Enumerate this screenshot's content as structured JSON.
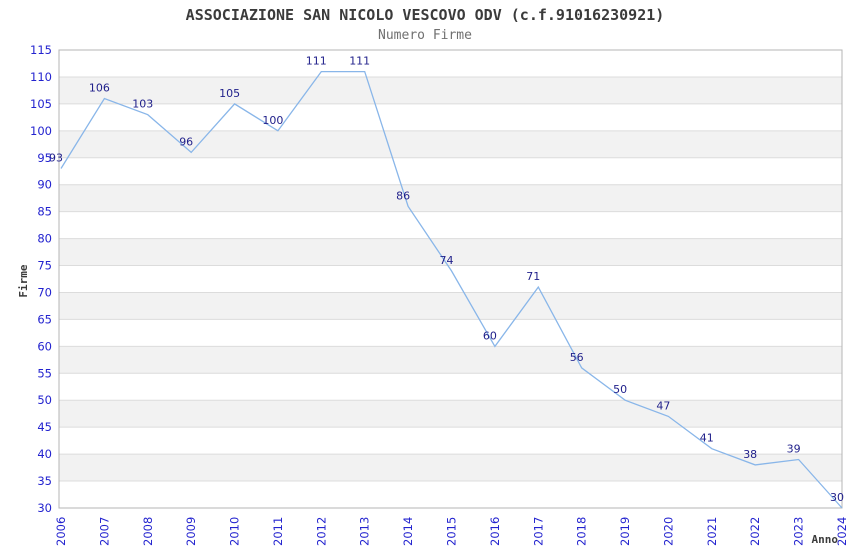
{
  "chart_data": {
    "type": "line",
    "title": "ASSOCIAZIONE SAN NICOLO VESCOVO ODV (c.f.91016230921)",
    "subtitle": "Numero Firme",
    "xlabel": "Anno",
    "ylabel": "Firme",
    "categories": [
      "2006",
      "2007",
      "2008",
      "2009",
      "2010",
      "2011",
      "2012",
      "2013",
      "2014",
      "2015",
      "2016",
      "2017",
      "2018",
      "2019",
      "2020",
      "2021",
      "2022",
      "2023",
      "2024"
    ],
    "values": [
      93,
      106,
      103,
      96,
      105,
      100,
      111,
      111,
      86,
      74,
      60,
      71,
      56,
      50,
      47,
      41,
      38,
      39,
      30
    ],
    "ylim": [
      30,
      115
    ],
    "ytick_step": 5,
    "ytick_labels": [
      "30",
      "35",
      "40",
      "45",
      "50",
      "55",
      "60",
      "65",
      "70",
      "75",
      "80",
      "85",
      "90",
      "95",
      "100",
      "105",
      "110",
      "115"
    ],
    "grid": "horizontal-only",
    "alternating_bands": true,
    "legend_position": "none",
    "colors": {
      "line": "#89b6e9",
      "value_label": "#1f1f8a",
      "tick_label": "#2323cf",
      "band": "#f2f2f2",
      "gridline": "#dcdcdc",
      "border": "#b5b5b5",
      "title": "#3b3b3b",
      "subtitle": "#707070",
      "axis_label": "#3b3b3b",
      "background": "#ffffff"
    }
  }
}
